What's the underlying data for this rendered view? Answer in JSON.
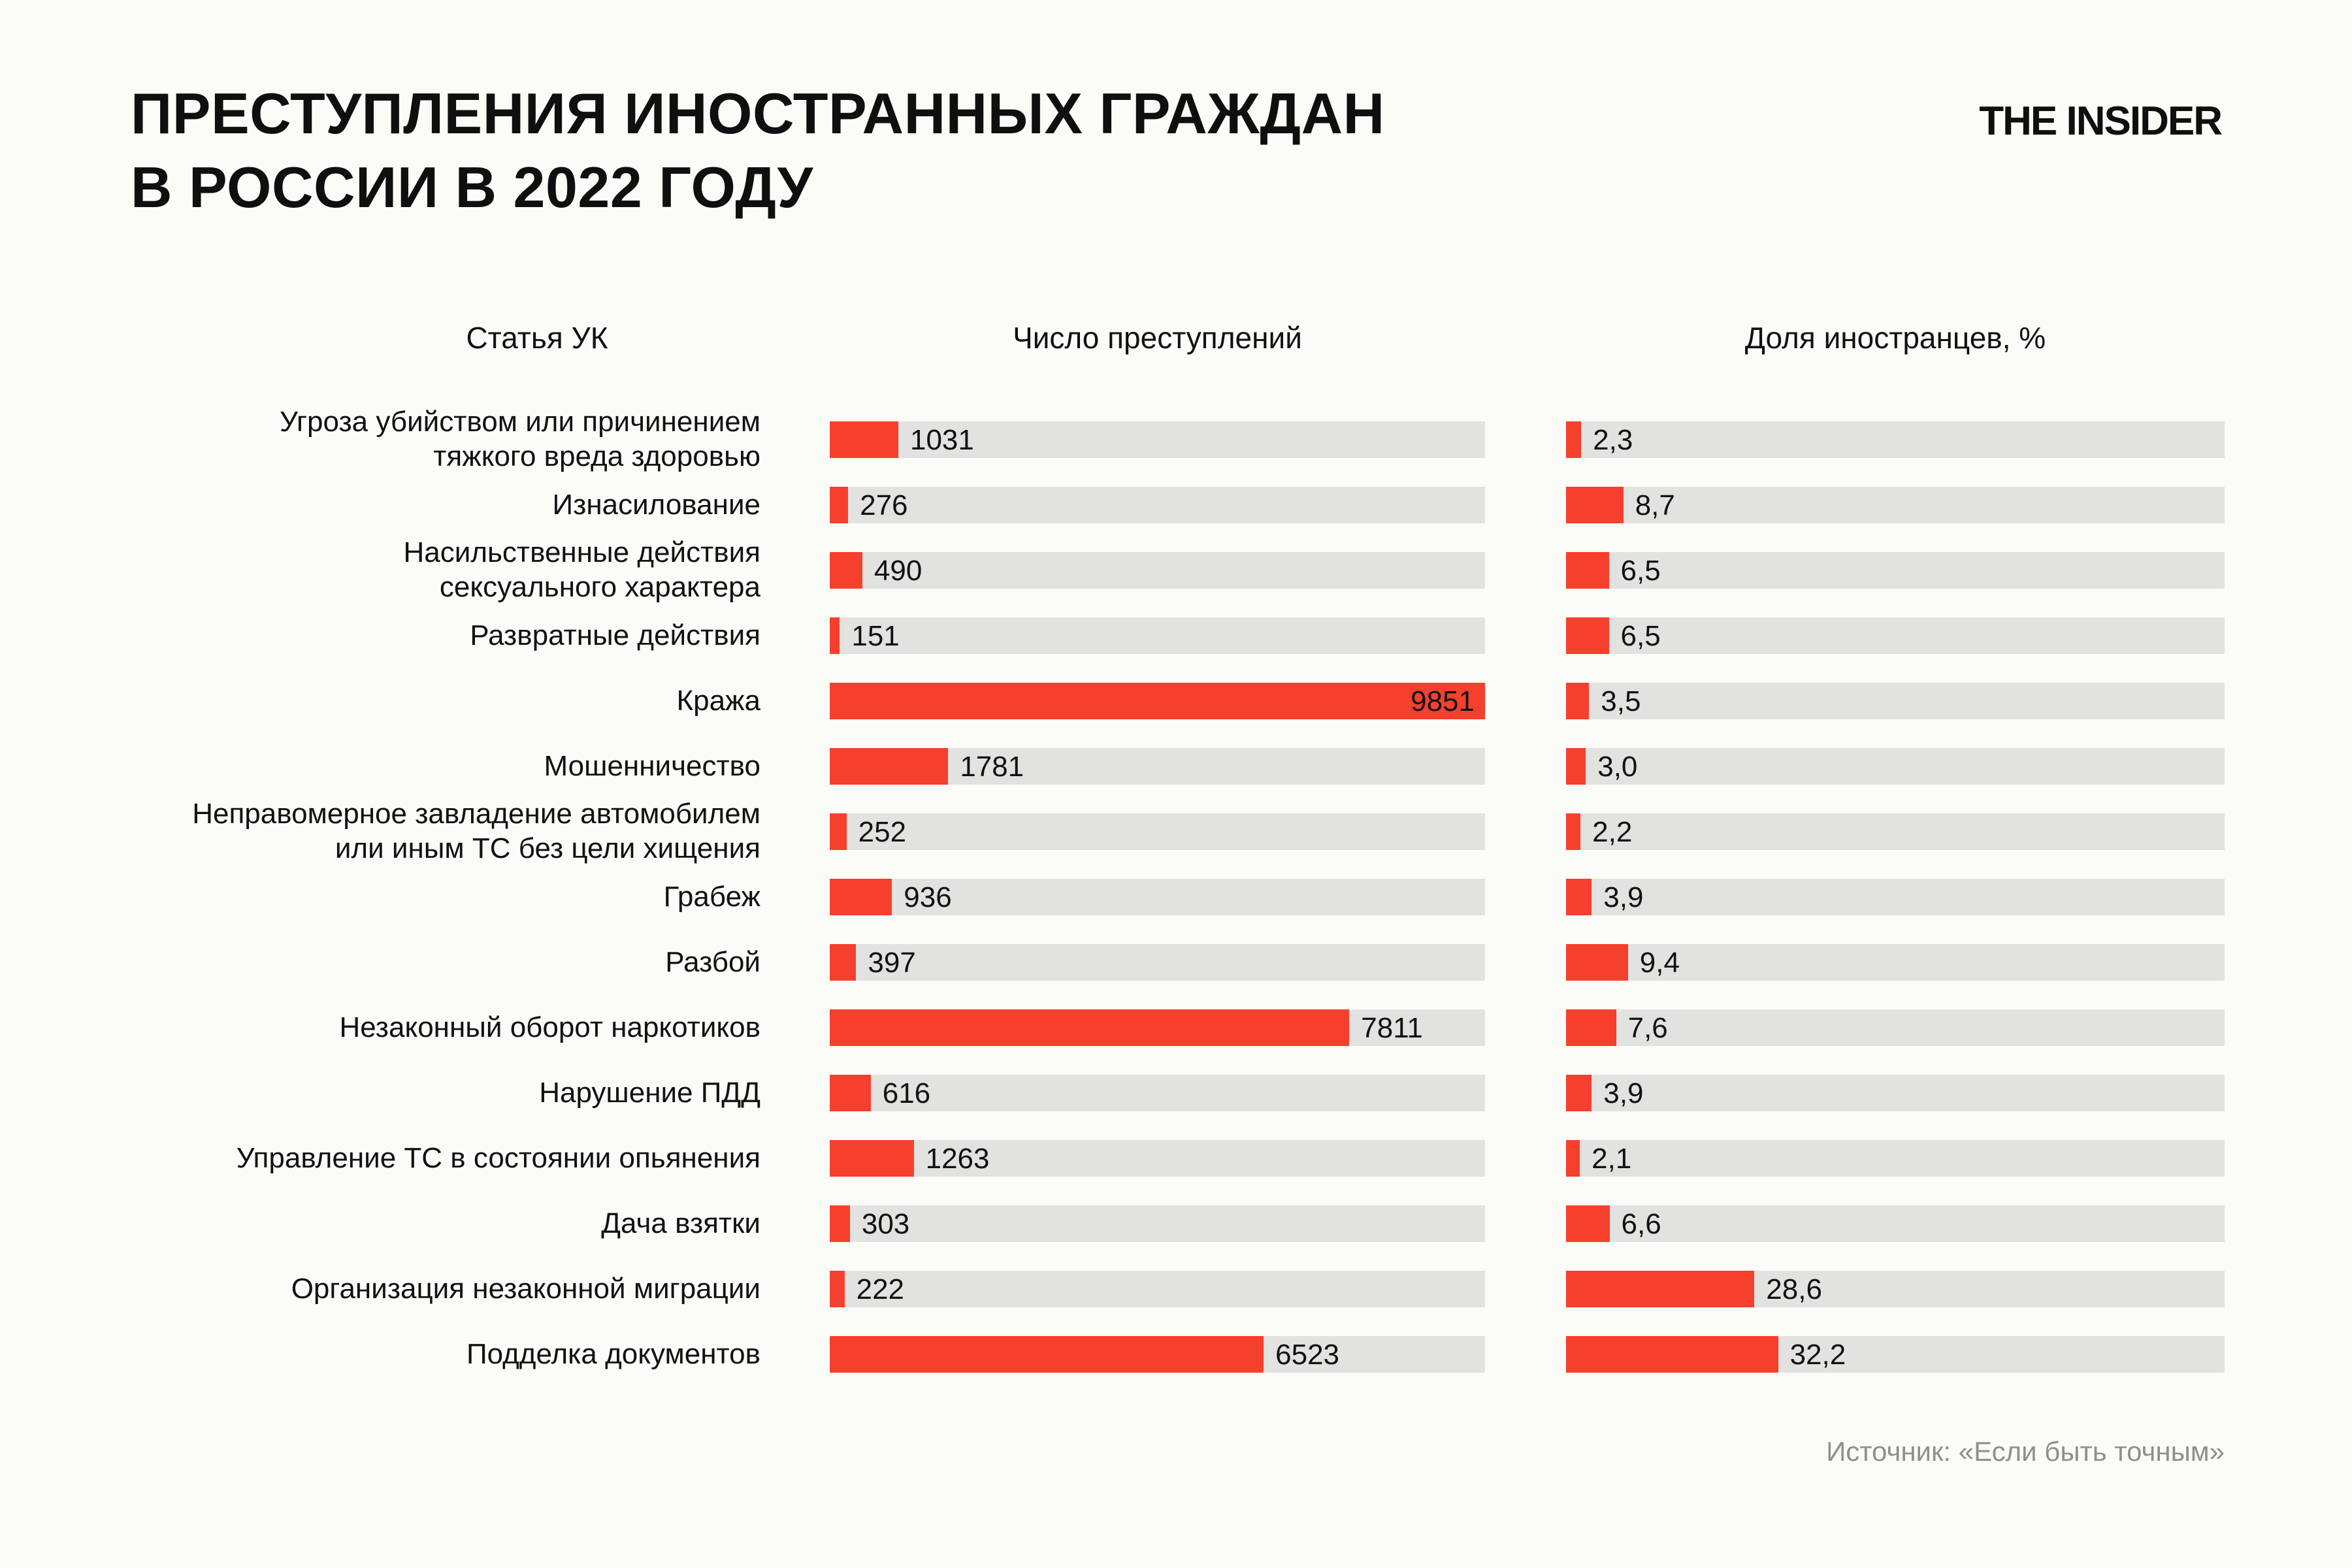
{
  "header": {
    "title": "ПРЕСТУПЛЕНИЯ ИНОСТРАННЫХ ГРАЖДАН\nВ РОССИИ В 2022 ГОДУ",
    "logo": "THE INSIDER"
  },
  "columns": {
    "article": "Статья УК",
    "count": "Число преступлений",
    "share": "Доля иностранцев, %"
  },
  "footer": {
    "source": "Источник: «Если быть точным»"
  },
  "colors": {
    "bar": "#f5402d",
    "track": "#e2e2e1",
    "background": "#fbfbf8",
    "text": "#111111",
    "source_text": "#8f8f8f"
  },
  "chart_data": {
    "type": "bar",
    "orientation": "horizontal",
    "title": "Преступления иностранных граждан в России в 2022 году",
    "grid": false,
    "legend": false,
    "categories": [
      "Угроза убийством или причинением\nтяжкого вреда здоровью",
      "Изнасилование",
      "Насильственные действия\nсексуального характера",
      "Развратные действия",
      "Кража",
      "Мошенничество",
      "Неправомерное завладение автомобилем\nили иным ТС без цели хищения",
      "Грабеж",
      "Разбой",
      "Незаконный оборот наркотиков",
      "Нарушение ПДД",
      "Управление ТС в состоянии опьянения",
      "Дача взятки",
      "Организация незаконной миграции",
      "Подделка документов"
    ],
    "series": [
      {
        "name": "Число преступлений",
        "values": [
          1031,
          276,
          490,
          151,
          9851,
          1781,
          252,
          936,
          397,
          7811,
          616,
          1263,
          303,
          222,
          6523
        ],
        "value_labels": [
          "1031",
          "276",
          "490",
          "151",
          "9851",
          "1781",
          "252",
          "936",
          "397",
          "7811",
          "616",
          "1263",
          "303",
          "222",
          "6523"
        ],
        "axis_max": 9851
      },
      {
        "name": "Доля иностранцев, %",
        "values": [
          2.3,
          8.7,
          6.5,
          6.5,
          3.5,
          3.0,
          2.2,
          3.9,
          9.4,
          7.6,
          3.9,
          2.1,
          6.6,
          28.6,
          32.2
        ],
        "value_labels": [
          "2,3",
          "8,7",
          "6,5",
          "6,5",
          "3,5",
          "3,0",
          "2,2",
          "3,9",
          "9,4",
          "7,6",
          "3,9",
          "2,1",
          "6,6",
          "28,6",
          "32,2"
        ],
        "axis_max": 100
      }
    ],
    "source": "Источник: «Если быть точным»"
  }
}
